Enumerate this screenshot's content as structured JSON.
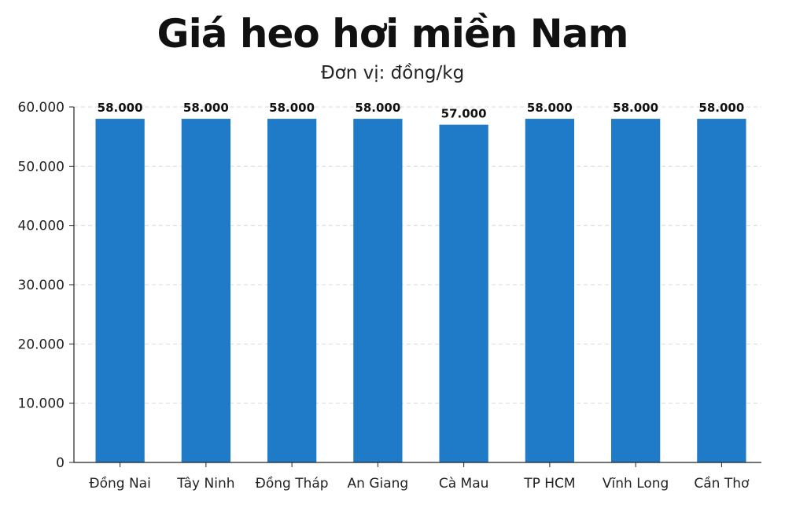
{
  "chart_data": {
    "type": "bar",
    "title": "Giá heo hơi miền Nam",
    "subtitle": "Đơn vị: đồng/kg",
    "categories": [
      "Đồng Nai",
      "Tây Ninh",
      "Đồng Tháp",
      "An Giang",
      "Cà Mau",
      "TP HCM",
      "Vĩnh Long",
      "Cần Thơ"
    ],
    "values": [
      58000,
      58000,
      58000,
      58000,
      57000,
      58000,
      58000,
      58000
    ],
    "data_labels": [
      "58.000",
      "58.000",
      "58.000",
      "58.000",
      "57.000",
      "58.000",
      "58.000",
      "58.000"
    ],
    "yticks": [
      0,
      10000,
      20000,
      30000,
      40000,
      50000,
      60000
    ],
    "ytick_labels": [
      "0",
      "10.000",
      "20.000",
      "30.000",
      "40.000",
      "50.000",
      "60.000"
    ],
    "ylim": [
      0,
      60000
    ],
    "xlabel": "",
    "ylabel": "",
    "grid": true,
    "bar_color": "#1f7ac8",
    "grid_color": "#d9d9d9"
  }
}
